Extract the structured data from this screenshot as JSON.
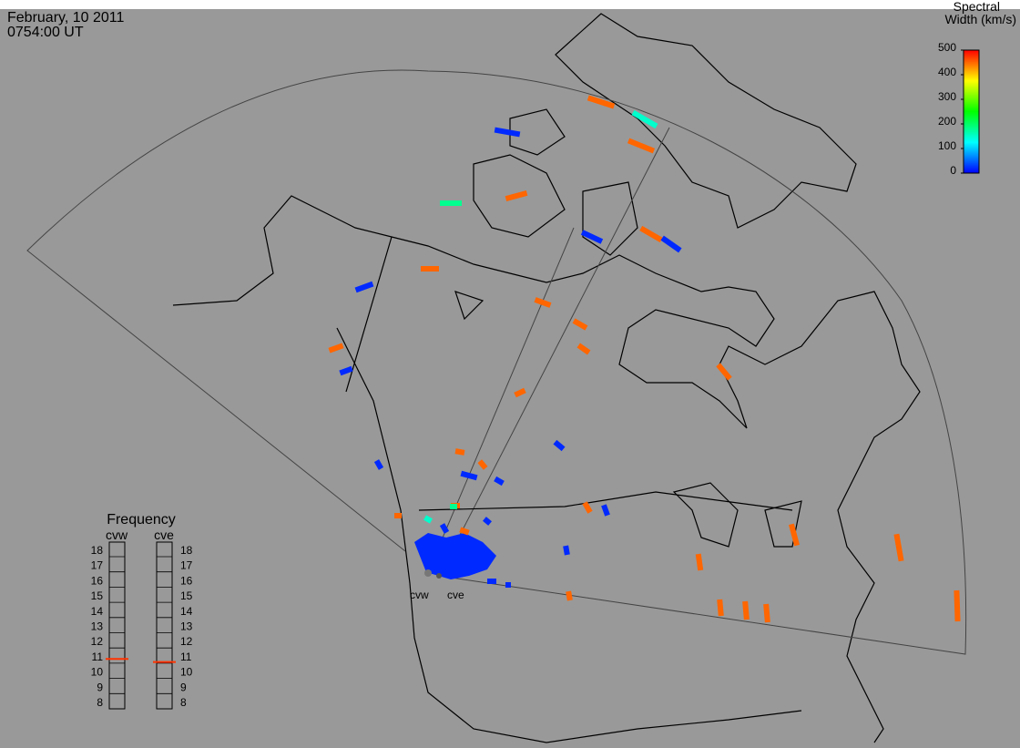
{
  "header": {
    "date": "February, 10 2011",
    "time": "0754:00 UT"
  },
  "colorbar": {
    "title": [
      "Spectral",
      "Width (km/s)"
    ],
    "range": [
      0,
      500
    ],
    "ticks": [
      0,
      100,
      200,
      300,
      400,
      500
    ]
  },
  "frequency": {
    "title": "Frequency",
    "radars": [
      {
        "name": "cvw",
        "value": 10.8
      },
      {
        "name": "cve",
        "value": 10.6
      }
    ],
    "ylim": [
      8,
      18
    ],
    "ticks": [
      8,
      9,
      10,
      11,
      12,
      13,
      14,
      15,
      16,
      17,
      18
    ]
  },
  "echoes": {
    "values": [
      450,
      150,
      450,
      20,
      450,
      180,
      20,
      450,
      20,
      450,
      20,
      450,
      450,
      450,
      450,
      20,
      450,
      450,
      20,
      450,
      20,
      450,
      20,
      20,
      450,
      450,
      450,
      450,
      450,
      450,
      450,
      450,
      20,
      450,
      20,
      450,
      180,
      20,
      450,
      20,
      150,
      450,
      20,
      20
    ]
  }
}
